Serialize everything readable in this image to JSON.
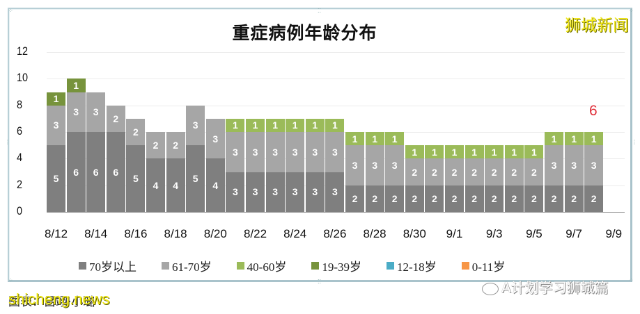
{
  "header": {
    "title": "重症病例年龄分布",
    "brand": "狮城新闻"
  },
  "annotation": {
    "text": "6",
    "color": "#e0303a"
  },
  "footer": {
    "caption": "图表：吕翊·小璐",
    "watermark_site": "shicheng.news",
    "watermark_account": "A计划学习狮城篇"
  },
  "legend": [
    {
      "label": "70岁以上",
      "color": "#7f7f7f"
    },
    {
      "label": "61-70岁",
      "color": "#a6a6a6"
    },
    {
      "label": "40-60岁",
      "color": "#9bbb59"
    },
    {
      "label": "19-39岁",
      "color": "#77933c"
    },
    {
      "label": "12-18岁",
      "color": "#4bacc6"
    },
    {
      "label": "0-11岁",
      "color": "#f79646"
    }
  ],
  "chart_data": {
    "type": "bar",
    "stacked": true,
    "title": "重症病例年龄分布",
    "xlabel": "",
    "ylabel": "",
    "ylim": [
      0,
      12
    ],
    "yticks": [
      0,
      2,
      4,
      6,
      8,
      10,
      12
    ],
    "grid": true,
    "legend_position": "bottom",
    "xtick_labels": [
      "8/12",
      "8/14",
      "8/16",
      "8/18",
      "8/20",
      "8/22",
      "8/24",
      "8/26",
      "8/28",
      "8/30",
      "9/1",
      "9/3",
      "9/5",
      "9/7",
      "9/9"
    ],
    "categories": [
      "8/12",
      "8/13",
      "8/14",
      "8/15",
      "8/16",
      "8/17",
      "8/18",
      "8/19",
      "8/20",
      "8/21",
      "8/22",
      "8/23",
      "8/24",
      "8/25",
      "8/26",
      "8/27",
      "8/28",
      "8/29",
      "8/30",
      "8/31",
      "9/1",
      "9/2",
      "9/3",
      "9/4",
      "9/5",
      "9/6",
      "9/7",
      "9/8",
      "9/9"
    ],
    "series": [
      {
        "name": "70岁以上",
        "color": "#7f7f7f",
        "values": [
          5,
          6,
          6,
          6,
          5,
          4,
          4,
          5,
          4,
          3,
          3,
          3,
          3,
          3,
          3,
          2,
          2,
          2,
          2,
          2,
          2,
          2,
          2,
          2,
          2,
          2,
          2,
          2,
          0
        ]
      },
      {
        "name": "61-70岁",
        "color": "#a6a6a6",
        "values": [
          3,
          3,
          3,
          2,
          2,
          2,
          2,
          3,
          3,
          3,
          3,
          3,
          3,
          3,
          3,
          3,
          3,
          3,
          2,
          2,
          2,
          2,
          2,
          2,
          2,
          3,
          3,
          3,
          0
        ]
      },
      {
        "name": "40-60岁",
        "color": "#9bbb59",
        "values": [
          0,
          0,
          0,
          0,
          0,
          0,
          0,
          0,
          0,
          1,
          1,
          1,
          1,
          1,
          1,
          1,
          1,
          1,
          1,
          1,
          1,
          1,
          1,
          1,
          1,
          1,
          1,
          1,
          0
        ]
      },
      {
        "name": "19-39岁",
        "color": "#77933c",
        "values": [
          1,
          1,
          0,
          0,
          0,
          0,
          0,
          0,
          0,
          0,
          0,
          0,
          0,
          0,
          0,
          0,
          0,
          0,
          0,
          0,
          0,
          0,
          0,
          0,
          0,
          0,
          0,
          0,
          0
        ]
      },
      {
        "name": "12-18岁",
        "color": "#4bacc6",
        "values": [
          0,
          0,
          0,
          0,
          0,
          0,
          0,
          0,
          0,
          0,
          0,
          0,
          0,
          0,
          0,
          0,
          0,
          0,
          0,
          0,
          0,
          0,
          0,
          0,
          0,
          0,
          0,
          0,
          0
        ]
      },
      {
        "name": "0-11岁",
        "color": "#f79646",
        "values": [
          0,
          0,
          0,
          0,
          0,
          0,
          0,
          0,
          0,
          0,
          0,
          0,
          0,
          0,
          0,
          0,
          0,
          0,
          0,
          0,
          0,
          0,
          0,
          0,
          0,
          0,
          0,
          0,
          0
        ]
      }
    ],
    "annotations": [
      {
        "x": "9/8",
        "text": "6"
      }
    ]
  }
}
